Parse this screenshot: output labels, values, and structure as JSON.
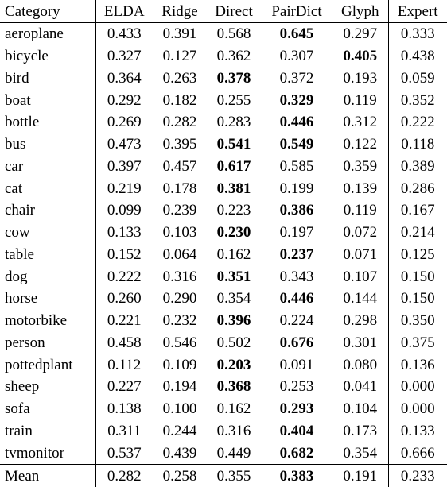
{
  "table": {
    "header": [
      "Category",
      "ELDA",
      "Ridge",
      "Direct",
      "PairDict",
      "Glyph",
      "Expert"
    ],
    "rows": [
      [
        "aeroplane",
        "0.433",
        "0.391",
        "0.568",
        "0.645",
        "0.297",
        "0.333"
      ],
      [
        "bicycle",
        "0.327",
        "0.127",
        "0.362",
        "0.307",
        "0.405",
        "0.438"
      ],
      [
        "bird",
        "0.364",
        "0.263",
        "0.378",
        "0.372",
        "0.193",
        "0.059"
      ],
      [
        "boat",
        "0.292",
        "0.182",
        "0.255",
        "0.329",
        "0.119",
        "0.352"
      ],
      [
        "bottle",
        "0.269",
        "0.282",
        "0.283",
        "0.446",
        "0.312",
        "0.222"
      ],
      [
        "bus",
        "0.473",
        "0.395",
        "0.541",
        "0.549",
        "0.122",
        "0.118"
      ],
      [
        "car",
        "0.397",
        "0.457",
        "0.617",
        "0.585",
        "0.359",
        "0.389"
      ],
      [
        "cat",
        "0.219",
        "0.178",
        "0.381",
        "0.199",
        "0.139",
        "0.286"
      ],
      [
        "chair",
        "0.099",
        "0.239",
        "0.223",
        "0.386",
        "0.119",
        "0.167"
      ],
      [
        "cow",
        "0.133",
        "0.103",
        "0.230",
        "0.197",
        "0.072",
        "0.214"
      ],
      [
        "table",
        "0.152",
        "0.064",
        "0.162",
        "0.237",
        "0.071",
        "0.125"
      ],
      [
        "dog",
        "0.222",
        "0.316",
        "0.351",
        "0.343",
        "0.107",
        "0.150"
      ],
      [
        "horse",
        "0.260",
        "0.290",
        "0.354",
        "0.446",
        "0.144",
        "0.150"
      ],
      [
        "motorbike",
        "0.221",
        "0.232",
        "0.396",
        "0.224",
        "0.298",
        "0.350"
      ],
      [
        "person",
        "0.458",
        "0.546",
        "0.502",
        "0.676",
        "0.301",
        "0.375"
      ],
      [
        "pottedplant",
        "0.112",
        "0.109",
        "0.203",
        "0.091",
        "0.080",
        "0.136"
      ],
      [
        "sheep",
        "0.227",
        "0.194",
        "0.368",
        "0.253",
        "0.041",
        "0.000"
      ],
      [
        "sofa",
        "0.138",
        "0.100",
        "0.162",
        "0.293",
        "0.104",
        "0.000"
      ],
      [
        "train",
        "0.311",
        "0.244",
        "0.316",
        "0.404",
        "0.173",
        "0.133"
      ],
      [
        "tvmonitor",
        "0.537",
        "0.439",
        "0.449",
        "0.682",
        "0.354",
        "0.666"
      ]
    ],
    "bold": [
      [
        4
      ],
      [
        5
      ],
      [
        3
      ],
      [
        4
      ],
      [
        4
      ],
      [
        3,
        4
      ],
      [
        3
      ],
      [
        3
      ],
      [
        4
      ],
      [
        3
      ],
      [
        4
      ],
      [
        3
      ],
      [
        4
      ],
      [
        3
      ],
      [
        4
      ],
      [
        3
      ],
      [
        3
      ],
      [
        4
      ],
      [
        4
      ],
      [
        4
      ]
    ],
    "footer": [
      "Mean",
      "0.282",
      "0.258",
      "0.355",
      "0.383",
      "0.191",
      "0.233"
    ],
    "footer_bold": [
      4
    ]
  }
}
